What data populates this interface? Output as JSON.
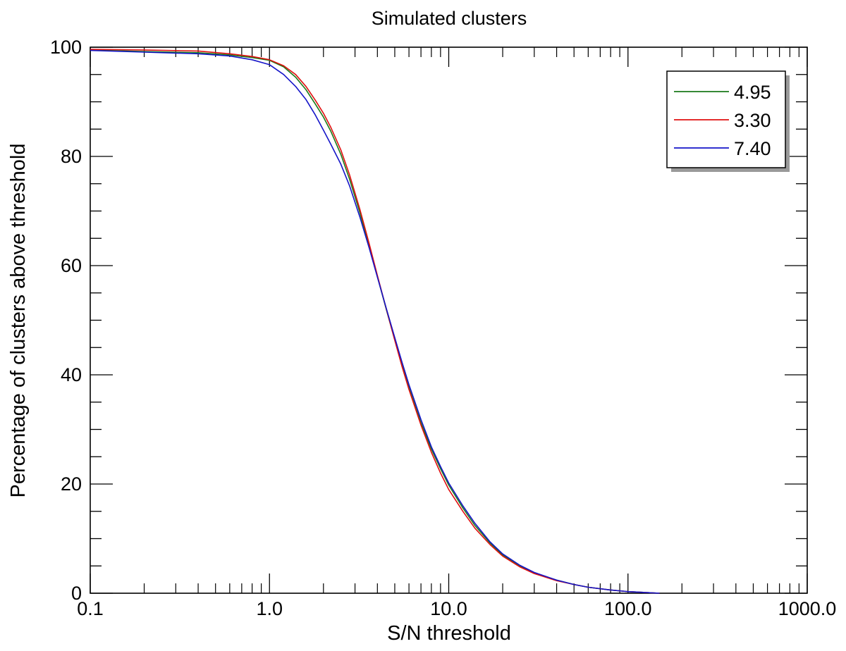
{
  "chart_data": {
    "type": "line",
    "title": "Simulated clusters",
    "xlabel": "S/N threshold",
    "ylabel": "Percentage of clusters above threshold",
    "xscale": "log",
    "xlim": [
      0.1,
      1000
    ],
    "ylim": [
      0,
      100
    ],
    "xticks": [
      {
        "value": 0.1,
        "label": "0.1"
      },
      {
        "value": 1,
        "label": "1.0"
      },
      {
        "value": 10,
        "label": "10.0"
      },
      {
        "value": 100,
        "label": "100.0"
      },
      {
        "value": 1000,
        "label": "1000.0"
      }
    ],
    "yticks": [
      {
        "value": 0,
        "label": "0"
      },
      {
        "value": 20,
        "label": "20"
      },
      {
        "value": 40,
        "label": "40"
      },
      {
        "value": 60,
        "label": "60"
      },
      {
        "value": 80,
        "label": "80"
      },
      {
        "value": 100,
        "label": "100"
      }
    ],
    "y_minor_step": 5,
    "grid": false,
    "legend_position": "top-right",
    "series": [
      {
        "name": "4.95",
        "color": "#1a7a1a",
        "x": [
          0.1,
          0.2,
          0.4,
          0.6,
          0.8,
          1.0,
          1.2,
          1.4,
          1.6,
          1.8,
          2.0,
          2.2,
          2.5,
          2.8,
          3.2,
          3.6,
          4.0,
          4.5,
          5.0,
          5.5,
          6.0,
          7.0,
          8.0,
          9.0,
          10.0,
          12.0,
          14.0,
          17.0,
          20.0,
          25.0,
          30.0,
          40.0,
          50.0,
          60.0,
          80.0,
          100.0,
          130.0,
          150.0
        ],
        "y": [
          99.5,
          99.2,
          99.0,
          98.6,
          98.1,
          97.6,
          96.4,
          94.5,
          92.2,
          89.6,
          87.2,
          84.6,
          80.4,
          75.8,
          69.6,
          63.6,
          58.0,
          51.8,
          46.4,
          41.6,
          37.6,
          31.2,
          26.4,
          22.8,
          19.8,
          15.6,
          12.4,
          9.2,
          7.0,
          5.0,
          3.7,
          2.4,
          1.6,
          1.1,
          0.6,
          0.3,
          0.1,
          0.0
        ]
      },
      {
        "name": "3.30",
        "color": "#e01010",
        "x": [
          0.1,
          0.2,
          0.4,
          0.6,
          0.8,
          1.0,
          1.2,
          1.4,
          1.6,
          1.8,
          2.0,
          2.2,
          2.5,
          2.8,
          3.2,
          3.6,
          4.0,
          4.5,
          5.0,
          5.5,
          6.0,
          7.0,
          8.0,
          9.0,
          10.0,
          12.0,
          14.0,
          17.0,
          20.0,
          25.0,
          30.0,
          40.0,
          50.0,
          60.0,
          80.0,
          100.0,
          130.0,
          150.0
        ],
        "y": [
          99.6,
          99.5,
          99.3,
          98.8,
          98.3,
          97.7,
          96.6,
          95.0,
          92.8,
          90.3,
          87.9,
          85.3,
          81.2,
          76.6,
          70.2,
          64.0,
          58.2,
          51.9,
          46.3,
          41.4,
          37.3,
          30.8,
          25.8,
          22.0,
          19.0,
          15.0,
          11.9,
          8.9,
          6.8,
          4.8,
          3.6,
          2.3,
          1.6,
          1.1,
          0.6,
          0.3,
          0.1,
          0.0
        ]
      },
      {
        "name": "7.40",
        "color": "#1515c8",
        "x": [
          0.1,
          0.2,
          0.4,
          0.6,
          0.8,
          1.0,
          1.2,
          1.4,
          1.6,
          1.8,
          2.0,
          2.2,
          2.5,
          2.8,
          3.2,
          3.6,
          4.0,
          4.5,
          5.0,
          5.5,
          6.0,
          7.0,
          8.0,
          9.0,
          10.0,
          12.0,
          14.0,
          17.0,
          20.0,
          25.0,
          30.0,
          40.0,
          50.0,
          60.0,
          80.0,
          100.0,
          130.0,
          150.0
        ],
        "y": [
          99.4,
          99.1,
          98.8,
          98.4,
          97.7,
          96.8,
          95.0,
          92.8,
          90.4,
          87.6,
          84.8,
          82.2,
          78.6,
          74.6,
          68.8,
          63.2,
          57.9,
          52.0,
          46.8,
          42.2,
          38.2,
          31.8,
          26.8,
          23.2,
          20.2,
          16.0,
          12.8,
          9.4,
          7.2,
          5.1,
          3.8,
          2.4,
          1.6,
          1.1,
          0.6,
          0.3,
          0.1,
          0.0
        ]
      }
    ]
  }
}
